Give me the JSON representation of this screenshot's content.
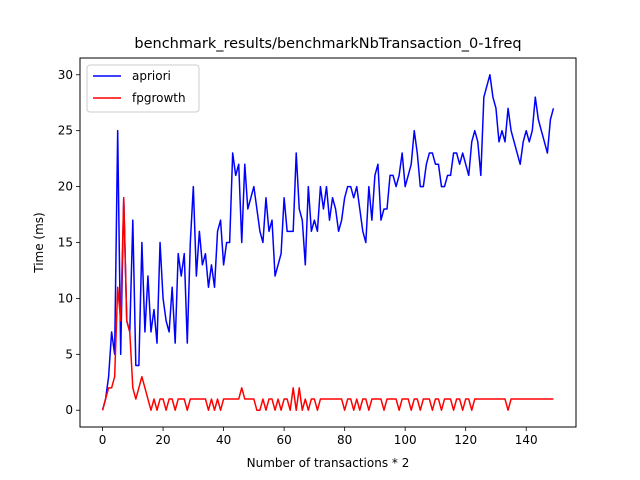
{
  "chart_data": {
    "type": "line",
    "title": "benchmark_results/benchmarkNbTransaction_0-1freq",
    "xlabel": "Number of transactions * 2",
    "ylabel": "Time (ms)",
    "xlim": [
      -7.45,
      156.45
    ],
    "ylim": [
      -1.5,
      31.5
    ],
    "xticks": [
      0,
      20,
      40,
      60,
      80,
      100,
      120,
      140
    ],
    "yticks": [
      0,
      5,
      10,
      15,
      20,
      25,
      30
    ],
    "grid": false,
    "legend_position": "top-left",
    "x": [
      0,
      1,
      2,
      3,
      4,
      5,
      6,
      7,
      8,
      9,
      10,
      11,
      12,
      13,
      14,
      15,
      16,
      17,
      18,
      19,
      20,
      21,
      22,
      23,
      24,
      25,
      26,
      27,
      28,
      29,
      30,
      31,
      32,
      33,
      34,
      35,
      36,
      37,
      38,
      39,
      40,
      41,
      42,
      43,
      44,
      45,
      46,
      47,
      48,
      49,
      50,
      51,
      52,
      53,
      54,
      55,
      56,
      57,
      58,
      59,
      60,
      61,
      62,
      63,
      64,
      65,
      66,
      67,
      68,
      69,
      70,
      71,
      72,
      73,
      74,
      75,
      76,
      77,
      78,
      79,
      80,
      81,
      82,
      83,
      84,
      85,
      86,
      87,
      88,
      89,
      90,
      91,
      92,
      93,
      94,
      95,
      96,
      97,
      98,
      99,
      100,
      101,
      102,
      103,
      104,
      105,
      106,
      107,
      108,
      109,
      110,
      111,
      112,
      113,
      114,
      115,
      116,
      117,
      118,
      119,
      120,
      121,
      122,
      123,
      124,
      125,
      126,
      127,
      128,
      129,
      130,
      131,
      132,
      133,
      134,
      135,
      136,
      137,
      138,
      139,
      140,
      141,
      142,
      143,
      144,
      145,
      146,
      147,
      148,
      149
    ],
    "series": [
      {
        "name": "apriori",
        "color": "#0000ff",
        "values": [
          0,
          1,
          3,
          7,
          5,
          25,
          5,
          19,
          8,
          7,
          17,
          4,
          4,
          15,
          7,
          12,
          7,
          9,
          6,
          15,
          10,
          8,
          7,
          11,
          6,
          14,
          12,
          14,
          6,
          15,
          20,
          12,
          16,
          13,
          14,
          11,
          13,
          11,
          16,
          17,
          13,
          15,
          15,
          23,
          21,
          22,
          15,
          22,
          18,
          19,
          20,
          18,
          16,
          15,
          19,
          16,
          17,
          12,
          13,
          14,
          19,
          16,
          16,
          16,
          23,
          18,
          17,
          13,
          20,
          16,
          17,
          16,
          20,
          18,
          20,
          17,
          19,
          18,
          16,
          17,
          19,
          20,
          20,
          19,
          20,
          18,
          16,
          15,
          20,
          17,
          21,
          22,
          17,
          18,
          18,
          21,
          21,
          20,
          21,
          23,
          20,
          21,
          22,
          25,
          23,
          20,
          20,
          22,
          23,
          23,
          22,
          22,
          20,
          20,
          21,
          21,
          23,
          23,
          22,
          23,
          22,
          21,
          24,
          25,
          24,
          21,
          28,
          29,
          30,
          28,
          27,
          24,
          25,
          24,
          27,
          25,
          24,
          23,
          22,
          24,
          25,
          24,
          25,
          28,
          26,
          25,
          24,
          23,
          26,
          27
        ]
      },
      {
        "name": "fpgrowth",
        "color": "#ff0000",
        "values": [
          0,
          1,
          2,
          2,
          3,
          11,
          8,
          19,
          8,
          7,
          2,
          1,
          2,
          3,
          2,
          1,
          0,
          1,
          0,
          1,
          1,
          0,
          1,
          1,
          0,
          1,
          1,
          1,
          0,
          1,
          1,
          1,
          1,
          1,
          1,
          0,
          1,
          0,
          1,
          0,
          1,
          1,
          1,
          1,
          1,
          1,
          2,
          1,
          1,
          1,
          1,
          0,
          0,
          1,
          0,
          1,
          1,
          0,
          1,
          0,
          1,
          1,
          0,
          2,
          0,
          2,
          0,
          1,
          0,
          1,
          1,
          0,
          1,
          1,
          1,
          1,
          1,
          1,
          1,
          1,
          0,
          1,
          1,
          0,
          1,
          0,
          1,
          1,
          0,
          1,
          1,
          1,
          1,
          0,
          1,
          1,
          1,
          1,
          0,
          1,
          1,
          1,
          0,
          1,
          1,
          0,
          1,
          1,
          1,
          0,
          1,
          1,
          0,
          1,
          1,
          1,
          0,
          1,
          1,
          0,
          1,
          1,
          0,
          1,
          1,
          1,
          1,
          1,
          1,
          1,
          1,
          1,
          1,
          1,
          0,
          1,
          1,
          1,
          1,
          1,
          1,
          1,
          1,
          1,
          1,
          1,
          1,
          1,
          1,
          1
        ]
      }
    ]
  }
}
